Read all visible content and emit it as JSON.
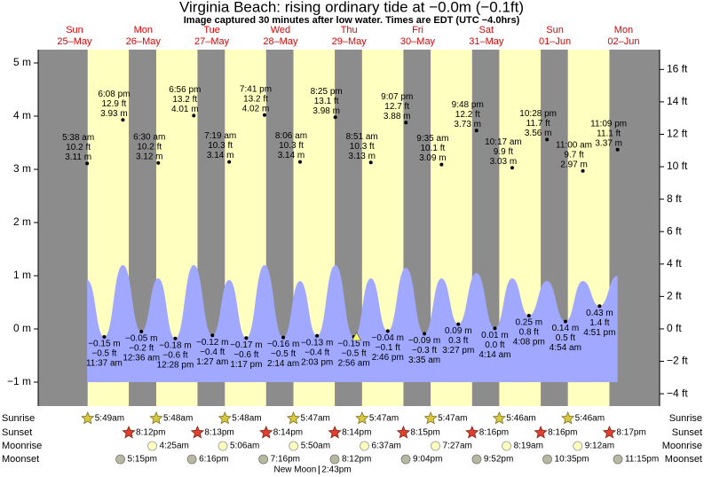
{
  "title": "Virginia Beach: rising  ordinary tide at −0.0m (−0.1ft)",
  "subtitle": "Image captured 30 minutes after low water. Times are EDT (UTC −4.0hrs)",
  "chart_data": {
    "type": "tide",
    "ylim": [
      -1.45,
      5.25
    ],
    "yticks": [
      {
        "value": 5,
        "label": "5 m"
      },
      {
        "value": 4,
        "label": "4 m"
      },
      {
        "value": 3,
        "label": "3 m"
      },
      {
        "value": 2,
        "label": "2 m"
      },
      {
        "value": 1,
        "label": "1 m"
      },
      {
        "value": 0,
        "label": "0 m"
      },
      {
        "value": -1,
        "label": "−1 m"
      }
    ],
    "y2lim": [
      -4.76,
      17.22
    ],
    "y2ticks": [
      {
        "value": 16,
        "label": "16 ft"
      },
      {
        "value": 14,
        "label": "14 ft"
      },
      {
        "value": 12,
        "label": "12 ft"
      },
      {
        "value": 10,
        "label": "10 ft"
      },
      {
        "value": 8,
        "label": "8 ft"
      },
      {
        "value": 6,
        "label": "6 ft"
      },
      {
        "value": 4,
        "label": "4 ft"
      },
      {
        "value": 2,
        "label": "2 ft"
      },
      {
        "value": 0,
        "label": "0 ft"
      },
      {
        "value": -2,
        "label": "−2 ft"
      },
      {
        "value": -4,
        "label": "−4 ft"
      }
    ],
    "rows": {
      "sunrise": "Sunrise",
      "sunset": "Sunset",
      "moonrise": "Moonrise",
      "moonset": "Moonset"
    },
    "days": [
      {
        "weekday": "Sun",
        "date": "25–May",
        "sunrise": "5:49am",
        "sunset": "8:12pm",
        "moonrise": null,
        "moonset": "5:15pm",
        "tides": [
          {
            "time": "5:38 am",
            "ft": "10.2 ft",
            "m": "3.11 m",
            "value": 3.11,
            "curve": 0.92
          },
          {
            "time": "11:37 am",
            "ft": "−0.5 ft",
            "m": "−0.15 m",
            "value": -0.15
          },
          {
            "time": "6:08 pm",
            "ft": "12.9 ft",
            "m": "3.93 m",
            "value": 3.93,
            "curve": 1.2
          }
        ]
      },
      {
        "weekday": "Mon",
        "date": "26–May",
        "sunrise": "5:48am",
        "sunset": "8:13pm",
        "moonrise": "4:25am",
        "moonset": "6:16pm",
        "tides": [
          {
            "time": "12:36 am",
            "ft": "−0.2 ft",
            "m": "−0.05 m",
            "value": -0.05
          },
          {
            "time": "6:30 am",
            "ft": "10.2 ft",
            "m": "3.12 m",
            "value": 3.12,
            "curve": 0.95
          },
          {
            "time": "12:28 pm",
            "ft": "−0.6 ft",
            "m": "−0.18 m",
            "value": -0.18
          },
          {
            "time": "6:56 pm",
            "ft": "13.2 ft",
            "m": "4.01 m",
            "value": 4.01,
            "curve": 1.2
          }
        ]
      },
      {
        "weekday": "Tue",
        "date": "27–May",
        "sunrise": "5:48am",
        "sunset": "8:14pm",
        "moonrise": "5:06am",
        "moonset": "7:16pm",
        "tides": [
          {
            "time": "1:27 am",
            "ft": "−0.4 ft",
            "m": "−0.12 m",
            "value": -0.12
          },
          {
            "time": "7:19 am",
            "ft": "10.3 ft",
            "m": "3.14 m",
            "value": 3.14,
            "curve": 0.92
          },
          {
            "time": "1:17 pm",
            "ft": "−0.6 ft",
            "m": "−0.17 m",
            "value": -0.17
          },
          {
            "time": "7:41 pm",
            "ft": "13.2 ft",
            "m": "4.02 m",
            "value": 4.02,
            "curve": 1.2
          }
        ]
      },
      {
        "weekday": "Wed",
        "date": "28–May",
        "sunrise": "5:47am",
        "sunset": "8:14pm",
        "moonrise": "5:50am",
        "moonset": "8:12pm",
        "new_moon": {
          "label": "New Moon",
          "time": "2:43pm"
        },
        "tides": [
          {
            "time": "2:14 am",
            "ft": "−0.5 ft",
            "m": "−0.16 m",
            "value": -0.16
          },
          {
            "time": "8:06 am",
            "ft": "10.3 ft",
            "m": "3.14 m",
            "value": 3.14,
            "curve": 0.9
          },
          {
            "time": "2:03 pm",
            "ft": "−0.4 ft",
            "m": "−0.13 m",
            "value": -0.13
          },
          {
            "time": "8:25 pm",
            "ft": "13.1 ft",
            "m": "3.98 m",
            "value": 3.98,
            "curve": 1.2
          }
        ]
      },
      {
        "weekday": "Thu",
        "date": "29–May",
        "sunrise": "5:47am",
        "sunset": "8:15pm",
        "moonrise": "6:37am",
        "moonset": "9:04pm",
        "tides": [
          {
            "time": "2:56 am",
            "ft": "−0.5 ft",
            "m": "−0.15 m",
            "value": -0.15
          },
          {
            "time": "8:51 am",
            "ft": "10.3 ft",
            "m": "3.13 m",
            "value": 3.13,
            "curve": 0.95
          },
          {
            "time": "2:46 pm",
            "ft": "−0.1 ft",
            "m": "−0.04 m",
            "value": -0.04
          },
          {
            "time": "9:07 pm",
            "ft": "12.7 ft",
            "m": "3.88 m",
            "value": 3.88,
            "curve": 1.15
          }
        ]
      },
      {
        "weekday": "Fri",
        "date": "30–May",
        "sunrise": "5:47am",
        "sunset": "8:16pm",
        "moonrise": "7:27am",
        "moonset": "9:52pm",
        "tides": [
          {
            "time": "3:35 am",
            "ft": "−0.3 ft",
            "m": "−0.09 m",
            "value": -0.09
          },
          {
            "time": "9:35 am",
            "ft": "10.1 ft",
            "m": "3.09 m",
            "value": 3.09,
            "curve": 0.95
          },
          {
            "time": "3:27 pm",
            "ft": "0.3 ft",
            "m": "0.09 m",
            "value": 0.09
          },
          {
            "time": "9:48 pm",
            "ft": "12.2 ft",
            "m": "3.73 m",
            "value": 3.73,
            "curve": 1.05
          }
        ]
      },
      {
        "weekday": "Sat",
        "date": "31–May",
        "sunrise": "5:46am",
        "sunset": "8:16pm",
        "moonrise": "8:19am",
        "moonset": "10:35pm",
        "tides": [
          {
            "time": "4:14 am",
            "ft": "0.0 ft",
            "m": "0.01 m",
            "value": 0.01
          },
          {
            "time": "10:17 am",
            "ft": "9.9 ft",
            "m": "3.03 m",
            "value": 3.03,
            "curve": 0.95
          },
          {
            "time": "4:08 pm",
            "ft": "0.8 ft",
            "m": "0.25 m",
            "value": 0.25
          },
          {
            "time": "10:28 pm",
            "ft": "11.7 ft",
            "m": "3.56 m",
            "value": 3.56,
            "curve": 0.9
          }
        ]
      },
      {
        "weekday": "Sun",
        "date": "01–Jun",
        "sunrise": "5:46am",
        "sunset": "8:17pm",
        "moonrise": "9:12am",
        "moonset": "11:15pm",
        "tides": [
          {
            "time": "4:54 am",
            "ft": "0.5 ft",
            "m": "0.14 m",
            "value": 0.14
          },
          {
            "time": "11:00 am",
            "ft": "9.7 ft",
            "m": "2.97 m",
            "value": 2.97,
            "curve": 0.9
          },
          {
            "time": "4:51 pm",
            "ft": "1.4 ft",
            "m": "0.43 m",
            "value": 0.43
          },
          {
            "time": "11:09 pm",
            "ft": "11.1 ft",
            "m": "3.37 m",
            "value": 3.37,
            "curve": 1.0
          }
        ]
      },
      {
        "weekday": "Mon",
        "date": "02–Jun"
      }
    ]
  }
}
